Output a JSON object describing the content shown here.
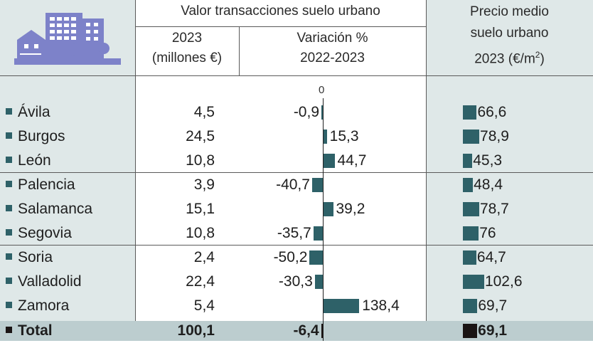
{
  "header": {
    "value_group": "Valor transacciones suelo urbano",
    "col1": [
      "2023",
      "(millones €)"
    ],
    "col2": [
      "Variación %",
      "2022-2023"
    ],
    "col3": [
      "Precio medio",
      "suelo urbano",
      "2023 (€/m",
      "2",
      ")"
    ]
  },
  "colors": {
    "bar": "#2e6168",
    "total_bar": "#1a1414",
    "panel": "#dfe8e8",
    "total_row": "#bccdcf",
    "icon": "#7d82c9"
  },
  "chart_data": {
    "type": "table",
    "zero_label": "0",
    "rows": [
      {
        "name": "Ávila",
        "value_2023": "4,5",
        "variation": -0.9,
        "variation_label": "-0,9",
        "price": 66.6,
        "price_label": "66,6"
      },
      {
        "name": "Burgos",
        "value_2023": "24,5",
        "variation": 15.3,
        "variation_label": "15,3",
        "price": 78.9,
        "price_label": "78,9"
      },
      {
        "name": "León",
        "value_2023": "10,8",
        "variation": 44.7,
        "variation_label": "44,7",
        "price": 45.3,
        "price_label": "45,3"
      },
      {
        "name": "Palencia",
        "value_2023": "3,9",
        "variation": -40.7,
        "variation_label": "-40,7",
        "price": 48.4,
        "price_label": "48,4"
      },
      {
        "name": "Salamanca",
        "value_2023": "15,1",
        "variation": 39.2,
        "variation_label": "39,2",
        "price": 78.7,
        "price_label": "78,7"
      },
      {
        "name": "Segovia",
        "value_2023": "10,8",
        "variation": -35.7,
        "variation_label": "-35,7",
        "price": 76,
        "price_label": "76"
      },
      {
        "name": "Soria",
        "value_2023": "2,4",
        "variation": -50.2,
        "variation_label": "-50,2",
        "price": 64.7,
        "price_label": "64,7"
      },
      {
        "name": "Valladolid",
        "value_2023": "22,4",
        "variation": -30.3,
        "variation_label": "-30,3",
        "price": 102.6,
        "price_label": "102,6"
      },
      {
        "name": "Zamora",
        "value_2023": "5,4",
        "variation": 138.4,
        "variation_label": "138,4",
        "price": 69.7,
        "price_label": "69,7"
      }
    ],
    "total": {
      "name": "Total",
      "value_2023": "100,1",
      "variation": -6.4,
      "variation_label": "-6,4",
      "price": 69.1,
      "price_label": "69,1"
    }
  }
}
